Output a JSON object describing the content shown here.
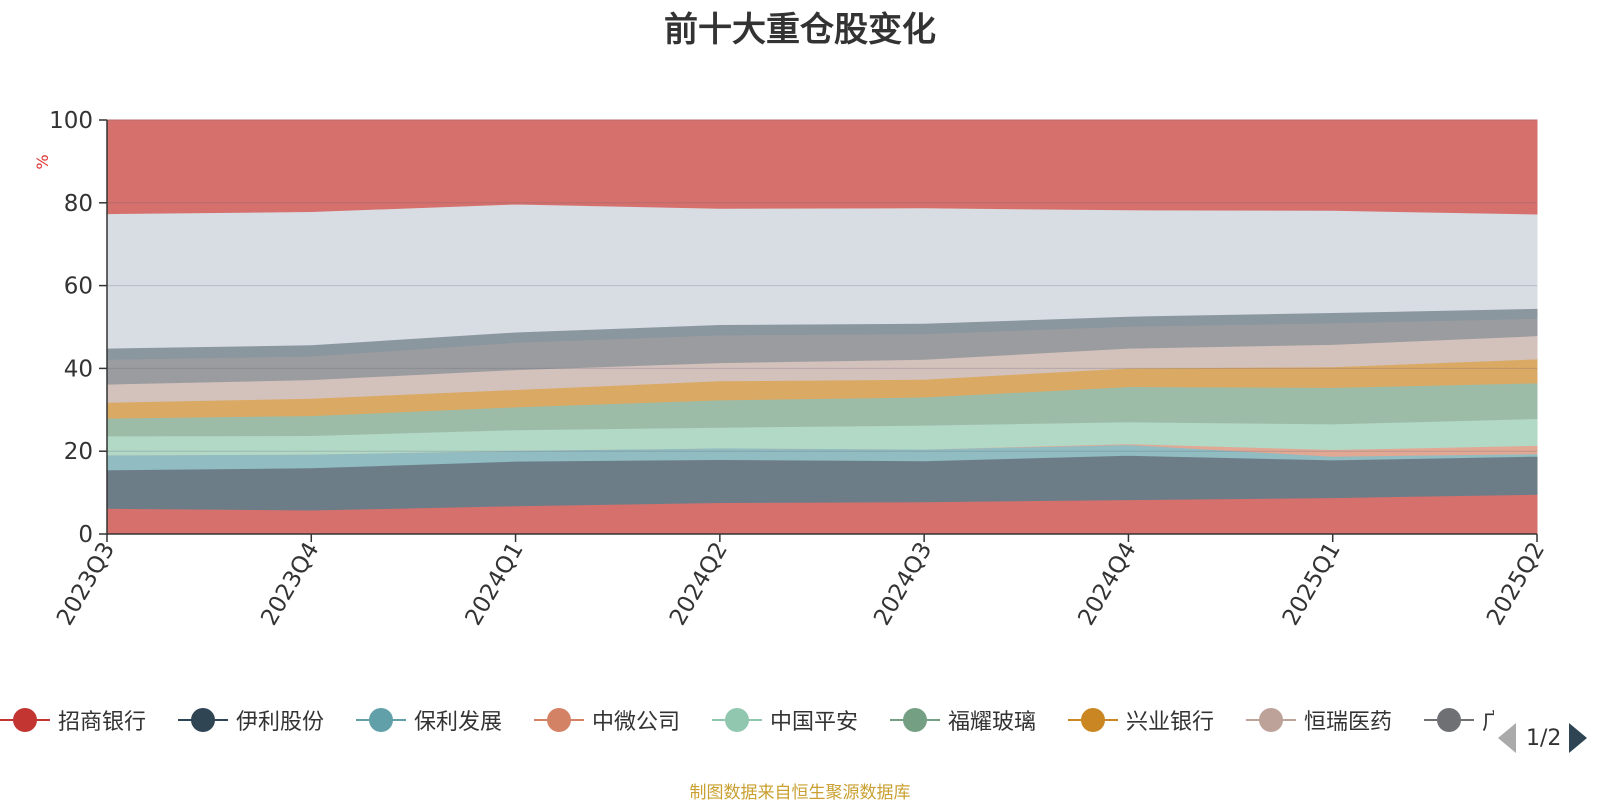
{
  "chart_data": {
    "type": "area",
    "stacked": true,
    "normalized_to_percent": true,
    "title": "前十大重仓股变化",
    "ylabel": "%",
    "xlabel": "",
    "ylim": [
      0,
      100
    ],
    "yticks": [
      0,
      20,
      40,
      60,
      80,
      100
    ],
    "grid": true,
    "legend_position": "bottom",
    "categories": [
      "2023Q3",
      "2023Q4",
      "2024Q1",
      "2024Q2",
      "2024Q3",
      "2024Q4",
      "2025Q1",
      "2025Q2"
    ],
    "series": [
      {
        "name": "招商银行",
        "color": "#c23531",
        "fill": "#d6706c",
        "values": [
          6.2,
          5.8,
          6.8,
          7.6,
          7.8,
          8.3,
          8.8,
          9.6
        ]
      },
      {
        "name": "伊利股份",
        "color": "#2f4554",
        "fill": "#6d7d88",
        "values": [
          9.3,
          10.2,
          10.8,
          10.4,
          9.9,
          10.7,
          9.1,
          9.2
        ]
      },
      {
        "name": "保利发展",
        "color": "#61a0a8",
        "fill": "#90bcc2",
        "values": [
          3.6,
          3.3,
          2.6,
          2.8,
          2.8,
          2.6,
          0.9,
          0.6
        ]
      },
      {
        "name": "中微公司",
        "color": "#d48265",
        "fill": "#e1a894",
        "values": [
          0.0,
          0.0,
          0.0,
          0.0,
          0.0,
          0.2,
          1.6,
          2.0
        ]
      },
      {
        "name": "中国平安",
        "color": "#91c7ae",
        "fill": "#b2d8c6",
        "values": [
          4.6,
          4.5,
          5.0,
          5.0,
          5.8,
          5.3,
          6.2,
          6.5
        ]
      },
      {
        "name": "福耀玻璃",
        "color": "#749f83",
        "fill": "#9dbca8",
        "values": [
          4.3,
          4.8,
          5.5,
          6.6,
          6.8,
          8.5,
          8.8,
          8.6
        ]
      },
      {
        "name": "兴业银行",
        "color": "#ca8622",
        "fill": "#daaa64",
        "values": [
          3.8,
          4.2,
          4.2,
          4.6,
          4.3,
          4.5,
          5.0,
          5.8
        ]
      },
      {
        "name": "恒瑞医药",
        "color": "#bda29a",
        "fill": "#d3c1bc",
        "values": [
          4.4,
          4.5,
          4.8,
          4.4,
          4.8,
          4.8,
          5.4,
          5.6
        ]
      },
      {
        "name": "",
        "color": "#6e7074",
        "fill": "#9b9c9f",
        "values": [
          6.0,
          5.7,
          6.6,
          6.7,
          6.2,
          5.3,
          5.2,
          4.2
        ]
      },
      {
        "name": "",
        "color": "#546570",
        "fill": "#8a979f",
        "values": [
          2.7,
          2.7,
          2.5,
          2.5,
          2.5,
          2.4,
          2.5,
          2.4
        ]
      },
      {
        "name": "",
        "color": "#c4ccd3",
        "fill": "#d8dce3",
        "values": [
          32.5,
          32.2,
          30.9,
          28.1,
          27.9,
          25.7,
          24.7,
          22.8
        ]
      },
      {
        "name": "",
        "color": "#c23531",
        "fill": "#d6706c",
        "values": [
          22.6,
          22.1,
          20.3,
          21.3,
          21.2,
          21.7,
          21.8,
          22.7
        ]
      }
    ]
  },
  "legend": {
    "page": "1/2",
    "truncated_label": "广"
  },
  "source_note": "制图数据来自恒生聚源数据库"
}
